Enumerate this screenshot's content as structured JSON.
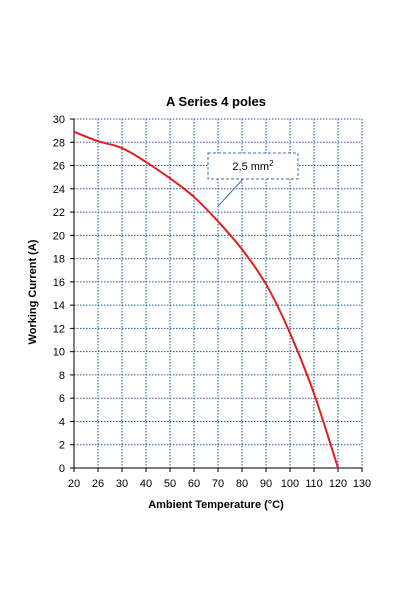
{
  "chart_data": {
    "type": "line",
    "title": "A Series 4 poles",
    "xlabel": "Ambient Temperature (°C)",
    "ylabel": "Working Current (A)",
    "x_ticks": [
      "20",
      "26",
      "30",
      "40",
      "50",
      "60",
      "70",
      "80",
      "90",
      "100",
      "110",
      "120",
      "130"
    ],
    "x_tick_values": [
      20,
      26,
      30,
      40,
      50,
      60,
      70,
      80,
      90,
      100,
      110,
      120,
      130
    ],
    "y_ticks": [
      "0",
      "2",
      "4",
      "6",
      "8",
      "10",
      "12",
      "14",
      "16",
      "18",
      "20",
      "22",
      "24",
      "26",
      "28",
      "30"
    ],
    "y_tick_values": [
      0,
      2,
      4,
      6,
      8,
      10,
      12,
      14,
      16,
      18,
      20,
      22,
      24,
      26,
      28,
      30
    ],
    "ylim": [
      0,
      30
    ],
    "grid": true,
    "series": [
      {
        "name": "2,5 mm²",
        "color": "#e21e1e",
        "x": [
          20,
          26,
          30,
          40,
          50,
          60,
          70,
          80,
          90,
          100,
          110,
          120
        ],
        "y": [
          28.9,
          28.1,
          27.5,
          26.3,
          24.9,
          23.3,
          21.2,
          18.8,
          15.8,
          11.6,
          6.4,
          0
        ]
      }
    ],
    "annotation": {
      "text": "2,5 mm",
      "superscript": "2",
      "points_to": [
        70,
        22.5
      ]
    },
    "colors": {
      "grid": "#1f5aa8",
      "annotation_border": "#3a6fb0",
      "curve": "#e21e1e"
    }
  }
}
